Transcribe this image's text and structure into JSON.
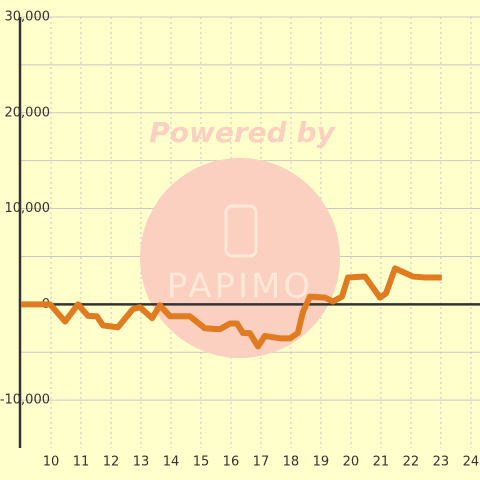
{
  "chart_data": {
    "type": "line",
    "watermark": {
      "line1": "Powered by",
      "line2": "PAPIMO"
    },
    "x": [
      9,
      9.97,
      10.47,
      10.9,
      11.23,
      11.53,
      11.73,
      12.23,
      12.73,
      12.97,
      13.37,
      13.63,
      13.97,
      14.47,
      14.63,
      15.13,
      15.63,
      15.97,
      16.2,
      16.4,
      16.63,
      16.9,
      17.13,
      17.63,
      17.97,
      18.23,
      18.4,
      18.63,
      19.13,
      19.4,
      19.7,
      19.9,
      20.47,
      20.97,
      21.17,
      21.47,
      22.07,
      22.47,
      23.03
    ],
    "series": [
      {
        "color": "#e07b22",
        "values": [
          0,
          0,
          -1800,
          0,
          -1200,
          -1250,
          -2200,
          -2400,
          -500,
          -300,
          -1450,
          -100,
          -1250,
          -1250,
          -1250,
          -2500,
          -2600,
          -2000,
          -2000,
          -3000,
          -3000,
          -4400,
          -3300,
          -3550,
          -3550,
          -3000,
          -800,
          800,
          700,
          300,
          800,
          2800,
          2900,
          700,
          1150,
          3750,
          2900,
          2800,
          2800
        ]
      }
    ],
    "xlim": [
      9,
      24.37
    ],
    "xticks": [
      10,
      11,
      12,
      13,
      14,
      15,
      16,
      17,
      18,
      19,
      20,
      21,
      22,
      23,
      24
    ],
    "ylim": [
      -15000,
      30000
    ],
    "yticks": [
      {
        "value": 30000,
        "label": "30,000"
      },
      {
        "value": 20000,
        "label": "20,000"
      },
      {
        "value": 10000,
        "label": "10,000"
      },
      0,
      {
        "value": -10000,
        "label": "-10,000"
      }
    ],
    "minor_yticks": [
      25000,
      15000,
      5000,
      -5000
    ],
    "grid": true
  }
}
